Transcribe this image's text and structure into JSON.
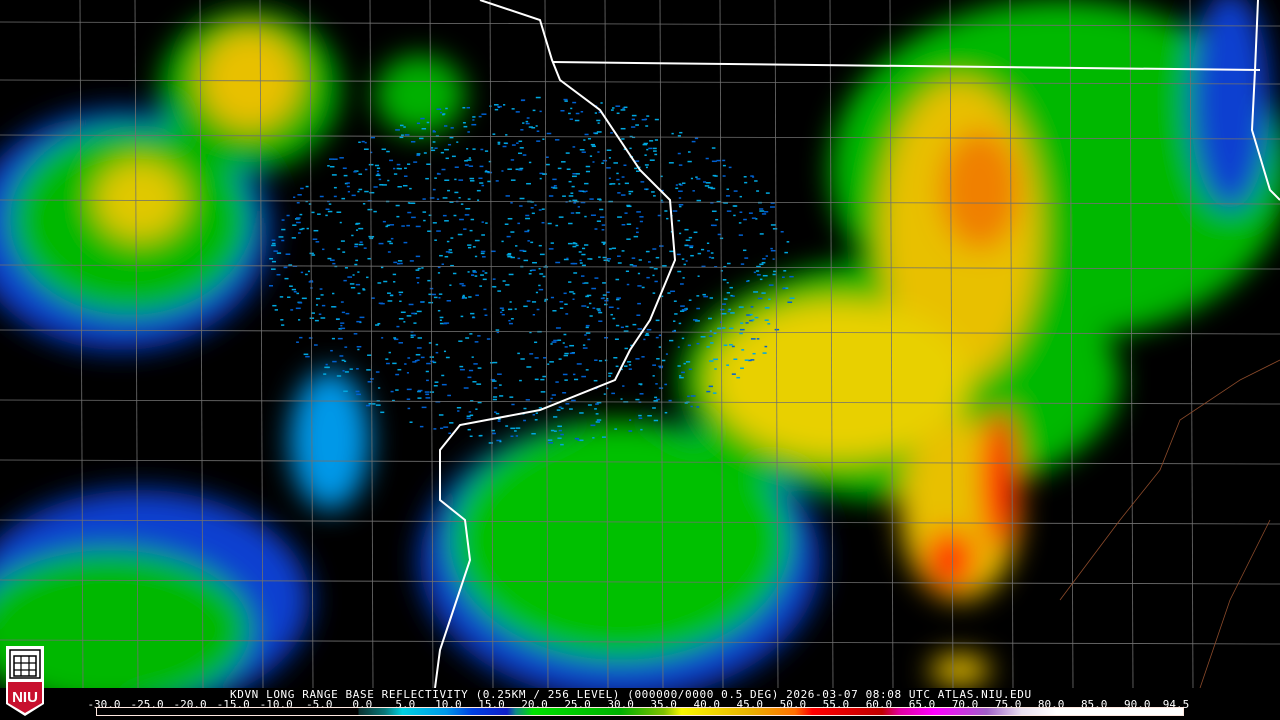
{
  "title": "KDVN LONG RANGE BASE REFLECTIVITY (0.25KM / 256 LEVEL) (000000/0000 0.5 DEG) 2026-03-07 08:08 UTC   ATLAS.NIU.EDU",
  "logo_text": "NIU",
  "colorbar": {
    "min": -30.0,
    "max": 94.5,
    "tick_labels": [
      "-30.0",
      "-25.0",
      "-20.0",
      "-15.0",
      "-10.0",
      "-5.0",
      "0.0",
      "5.0",
      "10.0",
      "15.0",
      "20.0",
      "25.0",
      "30.0",
      "35.0",
      "40.0",
      "45.0",
      "50.0",
      "55.0",
      "60.0",
      "65.0",
      "70.0",
      "75.0",
      "80.0",
      "85.0",
      "90.0",
      "94.5"
    ],
    "stops": [
      {
        "value": 0,
        "color": "#0a3030"
      },
      {
        "value": 3,
        "color": "#087878"
      },
      {
        "value": 5,
        "color": "#00d0e0"
      },
      {
        "value": 10,
        "color": "#0098e8"
      },
      {
        "value": 13,
        "color": "#0040e0"
      },
      {
        "value": 17,
        "color": "#1020c8"
      },
      {
        "value": 18,
        "color": "#108888"
      },
      {
        "value": 20,
        "color": "#00e000"
      },
      {
        "value": 30,
        "color": "#00b000"
      },
      {
        "value": 35,
        "color": "#80c000"
      },
      {
        "value": 37,
        "color": "#f8f800"
      },
      {
        "value": 45,
        "color": "#e8b000"
      },
      {
        "value": 50,
        "color": "#ff7000"
      },
      {
        "value": 52,
        "color": "#ff0000"
      },
      {
        "value": 60,
        "color": "#c00000"
      },
      {
        "value": 62,
        "color": "#e000a0"
      },
      {
        "value": 66,
        "color": "#ff00ff"
      },
      {
        "value": 72,
        "color": "#a060c8"
      },
      {
        "value": 76,
        "color": "#e8e0f0"
      },
      {
        "value": 80,
        "color": "#ffffff"
      },
      {
        "value": 94.5,
        "color": "#ffffff"
      }
    ]
  }
}
